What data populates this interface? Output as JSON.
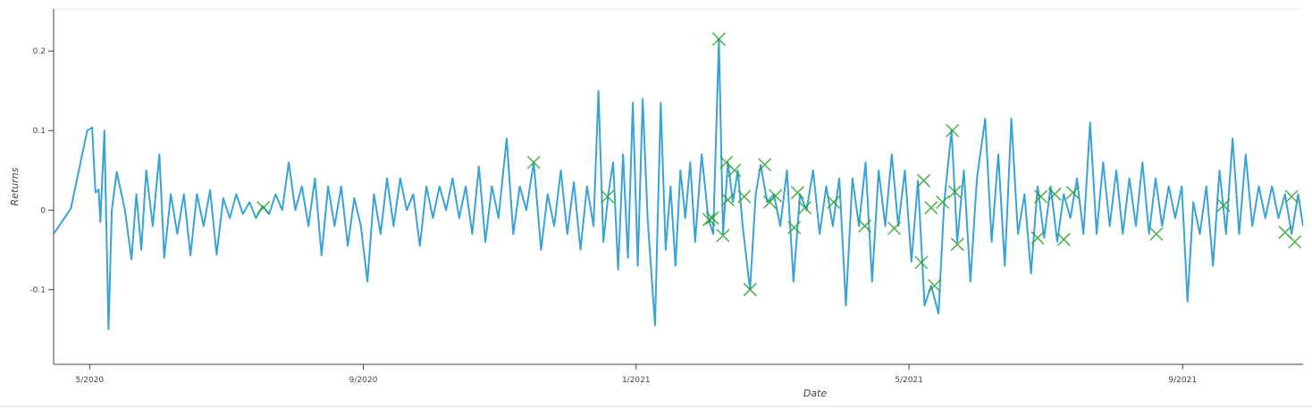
{
  "chart_data": {
    "type": "line",
    "x_label": "Date",
    "y_label": "Returns",
    "xlim": [
      2020.289,
      2021.814
    ],
    "ylim": [
      -0.194,
      0.253
    ],
    "xticks": [
      {
        "value": 2020.333,
        "label": "5/2020"
      },
      {
        "value": 2020.667,
        "label": "9/2020"
      },
      {
        "value": 2021.0,
        "label": "1/2021"
      },
      {
        "value": 2021.333,
        "label": "5/2021"
      },
      {
        "value": 2021.667,
        "label": "9/2021"
      }
    ],
    "yticks": [
      -0.1,
      0,
      0.1,
      0.2
    ],
    "series": [
      {
        "type": "line",
        "color": "#3aa3d6",
        "x": [
          2020.289,
          2020.31,
          2020.33,
          2020.336,
          2020.34,
          2020.344,
          2020.346,
          2020.351,
          2020.356,
          2020.36,
          2020.366,
          2020.376,
          2020.384,
          2020.39,
          2020.396,
          2020.402,
          2020.41,
          2020.418,
          2020.424,
          2020.432,
          2020.44,
          2020.448,
          2020.456,
          2020.464,
          2020.472,
          2020.48,
          2020.488,
          2020.496,
          2020.504,
          2020.512,
          2020.52,
          2020.528,
          2020.536,
          2020.544,
          2020.552,
          2020.56,
          2020.568,
          2020.576,
          2020.584,
          2020.592,
          2020.6,
          2020.608,
          2020.616,
          2020.624,
          2020.632,
          2020.64,
          2020.648,
          2020.656,
          2020.664,
          2020.672,
          2020.68,
          2020.688,
          2020.696,
          2020.704,
          2020.712,
          2020.72,
          2020.728,
          2020.736,
          2020.744,
          2020.752,
          2020.76,
          2020.768,
          2020.776,
          2020.784,
          2020.792,
          2020.8,
          2020.808,
          2020.816,
          2020.824,
          2020.832,
          2020.842,
          2020.85,
          2020.858,
          2020.866,
          2020.875,
          2020.884,
          2020.892,
          2020.9,
          2020.908,
          2020.916,
          2020.924,
          2020.932,
          2020.94,
          2020.948,
          2020.954,
          2020.96,
          2020.966,
          2020.972,
          2020.978,
          2020.984,
          2020.99,
          2020.996,
          2021.002,
          2021.008,
          2021.014,
          2021.023,
          2021.03,
          2021.036,
          2021.042,
          2021.048,
          2021.054,
          2021.06,
          2021.066,
          2021.072,
          2021.08,
          2021.088,
          2021.094,
          2021.101,
          2021.106,
          2021.112,
          2021.118,
          2021.124,
          2021.13,
          2021.139,
          2021.146,
          2021.152,
          2021.16,
          2021.168,
          2021.176,
          2021.184,
          2021.192,
          2021.2,
          2021.208,
          2021.216,
          2021.224,
          2021.232,
          2021.24,
          2021.248,
          2021.256,
          2021.264,
          2021.272,
          2021.28,
          2021.288,
          2021.296,
          2021.304,
          2021.312,
          2021.32,
          2021.328,
          2021.336,
          2021.344,
          2021.352,
          2021.36,
          2021.369,
          2021.376,
          2021.385,
          2021.392,
          2021.4,
          2021.408,
          2021.416,
          2021.426,
          2021.434,
          2021.442,
          2021.45,
          2021.458,
          2021.466,
          2021.474,
          2021.482,
          2021.49,
          2021.498,
          2021.506,
          2021.514,
          2021.522,
          2021.53,
          2021.538,
          2021.546,
          2021.554,
          2021.562,
          2021.57,
          2021.578,
          2021.586,
          2021.594,
          2021.602,
          2021.61,
          2021.618,
          2021.626,
          2021.634,
          2021.642,
          2021.65,
          2021.658,
          2021.666,
          2021.673,
          2021.68,
          2021.688,
          2021.696,
          2021.704,
          2021.712,
          2021.72,
          2021.728,
          2021.736,
          2021.744,
          2021.752,
          2021.76,
          2021.768,
          2021.776,
          2021.784,
          2021.792,
          2021.8,
          2021.808,
          2021.814
        ],
        "values": [
          -0.03,
          0.002,
          0.1,
          0.104,
          0.022,
          0.026,
          -0.015,
          0.1,
          -0.15,
          0.0,
          0.048,
          0.0,
          -0.062,
          0.02,
          -0.05,
          0.05,
          -0.02,
          0.07,
          -0.06,
          0.02,
          -0.03,
          0.02,
          -0.057,
          0.02,
          -0.02,
          0.025,
          -0.056,
          0.015,
          -0.01,
          0.02,
          -0.005,
          0.01,
          -0.01,
          0.005,
          -0.005,
          0.02,
          0.0,
          0.06,
          0.0,
          0.03,
          -0.02,
          0.04,
          -0.057,
          0.03,
          -0.02,
          0.03,
          -0.045,
          0.015,
          -0.02,
          -0.09,
          0.02,
          -0.03,
          0.04,
          -0.02,
          0.04,
          0.0,
          0.02,
          -0.045,
          0.03,
          -0.01,
          0.03,
          0.0,
          0.04,
          -0.01,
          0.03,
          -0.03,
          0.055,
          -0.04,
          0.03,
          -0.01,
          0.09,
          -0.03,
          0.03,
          0.0,
          0.06,
          -0.05,
          0.02,
          -0.02,
          0.05,
          -0.03,
          0.035,
          -0.05,
          0.03,
          -0.02,
          0.15,
          -0.04,
          0.02,
          0.06,
          -0.075,
          0.07,
          -0.06,
          0.135,
          -0.07,
          0.14,
          -0.01,
          -0.145,
          0.135,
          -0.05,
          0.03,
          -0.07,
          0.05,
          -0.01,
          0.06,
          -0.04,
          0.07,
          -0.01,
          -0.03,
          0.215,
          -0.03,
          0.06,
          0.01,
          0.05,
          -0.02,
          -0.1,
          0.02,
          0.057,
          0.01,
          0.02,
          -0.02,
          0.05,
          -0.09,
          0.02,
          0.0,
          0.05,
          -0.03,
          0.03,
          -0.02,
          0.04,
          -0.12,
          0.04,
          -0.02,
          0.06,
          -0.09,
          0.05,
          -0.02,
          0.07,
          -0.02,
          0.05,
          -0.065,
          0.037,
          -0.12,
          -0.095,
          -0.13,
          0.01,
          0.1,
          -0.04,
          0.05,
          -0.09,
          0.04,
          0.115,
          -0.04,
          0.07,
          -0.07,
          0.115,
          -0.03,
          0.02,
          -0.08,
          0.03,
          -0.035,
          0.03,
          -0.04,
          0.02,
          -0.01,
          0.04,
          -0.03,
          0.11,
          -0.03,
          0.06,
          -0.02,
          0.05,
          -0.03,
          0.04,
          -0.02,
          0.06,
          -0.03,
          0.04,
          -0.02,
          0.03,
          -0.01,
          0.03,
          -0.115,
          0.01,
          -0.03,
          0.03,
          -0.07,
          0.05,
          -0.03,
          0.09,
          -0.03,
          0.07,
          -0.02,
          0.03,
          -0.01,
          0.03,
          -0.01,
          0.02,
          -0.03,
          0.02,
          -0.02
        ]
      },
      {
        "type": "scatter",
        "color": "#2ca02c",
        "x": [
          2020.545,
          2020.875,
          2020.965,
          2021.089,
          2021.093,
          2021.101,
          2021.106,
          2021.11,
          2021.112,
          2021.12,
          2021.132,
          2021.139,
          2021.157,
          2021.163,
          2021.17,
          2021.193,
          2021.197,
          2021.206,
          2021.241,
          2021.279,
          2021.315,
          2021.348,
          2021.351,
          2021.36,
          2021.364,
          2021.374,
          2021.386,
          2021.389,
          2021.392,
          2021.49,
          2021.494,
          2021.511,
          2021.522,
          2021.533,
          2021.635,
          2021.717,
          2021.792,
          2021.8,
          2021.804
        ],
        "values": [
          0.003,
          0.06,
          0.017,
          -0.012,
          -0.01,
          0.215,
          -0.032,
          0.06,
          0.013,
          0.05,
          0.017,
          -0.1,
          0.057,
          0.01,
          0.018,
          -0.022,
          0.022,
          0.003,
          0.01,
          -0.02,
          -0.023,
          -0.066,
          0.037,
          0.003,
          -0.095,
          0.01,
          0.1,
          0.023,
          -0.043,
          -0.035,
          0.017,
          0.02,
          -0.037,
          0.022,
          -0.03,
          0.006,
          -0.028,
          0.017,
          -0.04
        ]
      }
    ]
  }
}
